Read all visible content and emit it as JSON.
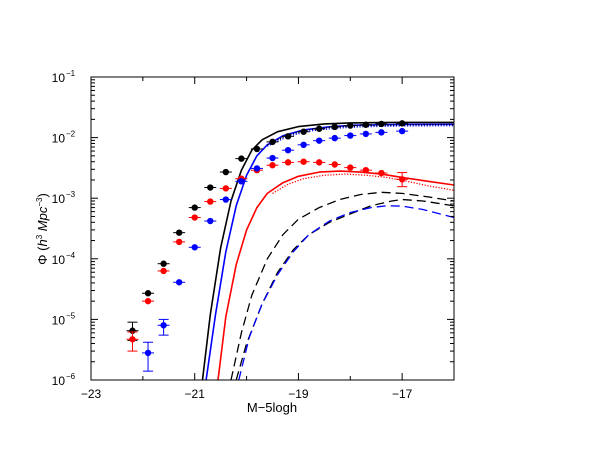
{
  "chart_data": {
    "type": "scatter",
    "title": "",
    "xlabel": "M−5logh",
    "ylabel": {
      "prefix": "Φ (",
      "h": "h",
      "h_exp": "3",
      "unit": " Mpc",
      "unit_exp": "−3",
      "suffix": ")"
    },
    "xlim": [
      -23,
      -16
    ],
    "ylim": [
      1e-06,
      0.1
    ],
    "yscale": "log",
    "grid": false,
    "x_ticks": [
      {
        "value": -23,
        "label": "−23"
      },
      {
        "value": -21,
        "label": "−21"
      },
      {
        "value": -19,
        "label": "−19"
      },
      {
        "value": -17,
        "label": "−17"
      }
    ],
    "y_ticks": [
      {
        "value": 1e-06,
        "base": "10",
        "exp": "−6"
      },
      {
        "value": 1e-05,
        "base": "10",
        "exp": "−5"
      },
      {
        "value": 0.0001,
        "base": "10",
        "exp": "−4"
      },
      {
        "value": 0.001,
        "base": "10",
        "exp": "−3"
      },
      {
        "value": 0.01,
        "base": "10",
        "exp": "−2"
      },
      {
        "value": 0.1,
        "base": "10",
        "exp": "−1"
      }
    ],
    "points": [
      {
        "color": "#000000",
        "data": [
          {
            "x": -22.2,
            "y": 6.5e-06,
            "err_up": 2.5e-06,
            "err_dn": 2e-06
          },
          {
            "x": -21.9,
            "y": 2.7e-05
          },
          {
            "x": -21.6,
            "y": 8.3e-05
          },
          {
            "x": -21.3,
            "y": 0.00027
          },
          {
            "x": -21.0,
            "y": 0.0007
          },
          {
            "x": -20.7,
            "y": 0.0015
          },
          {
            "x": -20.4,
            "y": 0.0027
          },
          {
            "x": -20.1,
            "y": 0.0045
          },
          {
            "x": -19.8,
            "y": 0.0065
          },
          {
            "x": -19.5,
            "y": 0.0085
          },
          {
            "x": -19.2,
            "y": 0.0105
          },
          {
            "x": -18.9,
            "y": 0.0125
          },
          {
            "x": -18.6,
            "y": 0.014
          },
          {
            "x": -18.3,
            "y": 0.015
          },
          {
            "x": -18.0,
            "y": 0.0158
          },
          {
            "x": -17.7,
            "y": 0.0163
          },
          {
            "x": -17.4,
            "y": 0.0168
          },
          {
            "x": -17.0,
            "y": 0.0172
          }
        ]
      },
      {
        "color": "#ff0000",
        "data": [
          {
            "x": -22.2,
            "y": 4.7e-06,
            "err_up": 1.5e-06,
            "err_dn": 1.7e-06
          },
          {
            "x": -21.9,
            "y": 2e-05
          },
          {
            "x": -21.6,
            "y": 6.3e-05
          },
          {
            "x": -21.3,
            "y": 0.00019
          },
          {
            "x": -21.0,
            "y": 0.00048
          },
          {
            "x": -20.7,
            "y": 0.00088
          },
          {
            "x": -20.4,
            "y": 0.00145
          },
          {
            "x": -20.1,
            "y": 0.0021
          },
          {
            "x": -19.8,
            "y": 0.0029
          },
          {
            "x": -19.5,
            "y": 0.0035
          },
          {
            "x": -19.2,
            "y": 0.0039
          },
          {
            "x": -18.9,
            "y": 0.004
          },
          {
            "x": -18.6,
            "y": 0.0039
          },
          {
            "x": -18.3,
            "y": 0.0036
          },
          {
            "x": -18.0,
            "y": 0.0032
          },
          {
            "x": -17.7,
            "y": 0.0029
          },
          {
            "x": -17.4,
            "y": 0.0026
          },
          {
            "x": -17.0,
            "y": 0.00205,
            "err_up": 0.0006,
            "err_dn": 0.0005
          }
        ]
      },
      {
        "color": "#0000ff",
        "data": [
          {
            "x": -21.9,
            "y": 2.8e-06,
            "err_up": 1.4e-06,
            "err_dn": 1.4e-06
          },
          {
            "x": -21.6,
            "y": 8e-06,
            "err_up": 2e-06,
            "err_dn": 2.5e-06
          },
          {
            "x": -21.3,
            "y": 4.1e-05
          },
          {
            "x": -21.0,
            "y": 0.000155
          },
          {
            "x": -20.7,
            "y": 0.00042
          },
          {
            "x": -20.4,
            "y": 0.00095
          },
          {
            "x": -20.1,
            "y": 0.0019
          },
          {
            "x": -19.8,
            "y": 0.0031
          },
          {
            "x": -19.5,
            "y": 0.0046
          },
          {
            "x": -19.2,
            "y": 0.0062
          },
          {
            "x": -18.9,
            "y": 0.0076
          },
          {
            "x": -18.6,
            "y": 0.0089
          },
          {
            "x": -18.3,
            "y": 0.0098
          },
          {
            "x": -18.0,
            "y": 0.0108
          },
          {
            "x": -17.7,
            "y": 0.0115
          },
          {
            "x": -17.4,
            "y": 0.0122
          },
          {
            "x": -17.0,
            "y": 0.0128
          }
        ]
      }
    ],
    "curves": [
      {
        "color": "#000000",
        "style": "solid",
        "data": [
          [
            -20.85,
            1e-06
          ],
          [
            -20.7,
            1.2e-05
          ],
          [
            -20.5,
            0.00015
          ],
          [
            -20.3,
            0.0009
          ],
          [
            -20.1,
            0.0029
          ],
          [
            -19.9,
            0.0062
          ],
          [
            -19.7,
            0.0092
          ],
          [
            -19.4,
            0.0125
          ],
          [
            -19.0,
            0.0152
          ],
          [
            -18.5,
            0.0168
          ],
          [
            -18.0,
            0.0175
          ],
          [
            -17.0,
            0.0178
          ],
          [
            -16.0,
            0.0178
          ]
        ]
      },
      {
        "color": "#0000ff",
        "style": "solid",
        "data": [
          [
            -20.78,
            1e-06
          ],
          [
            -20.6,
            1.2e-05
          ],
          [
            -20.4,
            0.00013
          ],
          [
            -20.2,
            0.00075
          ],
          [
            -20.0,
            0.0024
          ],
          [
            -19.8,
            0.005
          ],
          [
            -19.6,
            0.0076
          ],
          [
            -19.3,
            0.0107
          ],
          [
            -18.9,
            0.0134
          ],
          [
            -18.4,
            0.0151
          ],
          [
            -17.9,
            0.016
          ],
          [
            -17.0,
            0.0165
          ],
          [
            -16.0,
            0.0166
          ]
        ]
      },
      {
        "color": "#0000ff",
        "style": "dotted",
        "data": [
          [
            -19.6,
            0.0072
          ],
          [
            -19.2,
            0.0105
          ],
          [
            -18.8,
            0.0128
          ],
          [
            -18.3,
            0.0143
          ],
          [
            -17.8,
            0.0151
          ],
          [
            -17.0,
            0.0156
          ],
          [
            -16.0,
            0.0157
          ]
        ]
      },
      {
        "color": "#000000",
        "style": "dotted",
        "data": [
          [
            -19.6,
            0.0076
          ],
          [
            -19.2,
            0.0111
          ],
          [
            -18.8,
            0.0135
          ],
          [
            -18.3,
            0.0151
          ],
          [
            -17.8,
            0.0158
          ],
          [
            -17.0,
            0.0163
          ],
          [
            -16.0,
            0.0165
          ]
        ]
      },
      {
        "color": "#ff0000",
        "style": "solid",
        "data": [
          [
            -20.55,
            1e-06
          ],
          [
            -20.4,
            1.1e-05
          ],
          [
            -20.2,
            8e-05
          ],
          [
            -20.0,
            0.0003
          ],
          [
            -19.8,
            0.0007
          ],
          [
            -19.6,
            0.0012
          ],
          [
            -19.3,
            0.0018
          ],
          [
            -19.0,
            0.0023
          ],
          [
            -18.6,
            0.0027
          ],
          [
            -18.2,
            0.0028
          ],
          [
            -17.8,
            0.0027
          ],
          [
            -17.4,
            0.0025
          ],
          [
            -17.0,
            0.0022
          ],
          [
            -16.5,
            0.0019
          ],
          [
            -16.0,
            0.00165
          ]
        ]
      },
      {
        "color": "#ff0000",
        "style": "dotted",
        "data": [
          [
            -19.5,
            0.0012
          ],
          [
            -19.2,
            0.0017
          ],
          [
            -18.9,
            0.0021
          ],
          [
            -18.5,
            0.0024
          ],
          [
            -18.1,
            0.0025
          ],
          [
            -17.7,
            0.0024
          ],
          [
            -17.3,
            0.0022
          ],
          [
            -16.9,
            0.0019
          ],
          [
            -16.5,
            0.0016
          ],
          [
            -16.0,
            0.00135
          ]
        ]
      },
      {
        "color": "#000000",
        "style": "dashed",
        "data": [
          [
            -20.3,
            1e-06
          ],
          [
            -20.1,
            6e-06
          ],
          [
            -19.9,
            2.5e-05
          ],
          [
            -19.6,
            0.0001
          ],
          [
            -19.3,
            0.00025
          ],
          [
            -19.0,
            0.00045
          ],
          [
            -18.6,
            0.0007
          ],
          [
            -18.2,
            0.00095
          ],
          [
            -17.8,
            0.00115
          ],
          [
            -17.4,
            0.00125
          ],
          [
            -17.0,
            0.0012
          ],
          [
            -16.5,
            0.00105
          ],
          [
            -16.0,
            0.0009
          ]
        ]
      },
      {
        "color": "#000000",
        "style": "dashed",
        "data": [
          [
            -20.2,
            1e-06
          ],
          [
            -20.0,
            4e-06
          ],
          [
            -19.7,
            1.8e-05
          ],
          [
            -19.4,
            6e-05
          ],
          [
            -19.1,
            0.00014
          ],
          [
            -18.8,
            0.00025
          ],
          [
            -18.4,
            0.0004
          ],
          [
            -18.0,
            0.00055
          ],
          [
            -17.6,
            0.00075
          ],
          [
            -17.2,
            0.0009
          ],
          [
            -17.0,
            0.00095
          ],
          [
            -16.6,
            0.0009
          ],
          [
            -16.0,
            0.00075
          ]
        ]
      },
      {
        "color": "#0000ff",
        "style": "dashed",
        "data": [
          [
            -20.15,
            1e-06
          ],
          [
            -19.95,
            5e-06
          ],
          [
            -19.7,
            1.8e-05
          ],
          [
            -19.4,
            5.5e-05
          ],
          [
            -19.1,
            0.00013
          ],
          [
            -18.8,
            0.00025
          ],
          [
            -18.4,
            0.00042
          ],
          [
            -18.0,
            0.00058
          ],
          [
            -17.6,
            0.0007
          ],
          [
            -17.3,
            0.00075
          ],
          [
            -17.0,
            0.00074
          ],
          [
            -16.6,
            0.00065
          ],
          [
            -16.0,
            0.00048
          ]
        ]
      }
    ]
  }
}
